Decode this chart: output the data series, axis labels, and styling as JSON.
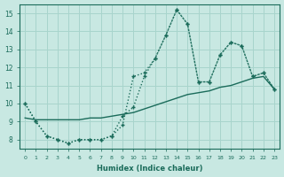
{
  "xlabel": "Humidex (Indice chaleur)",
  "bg_color": "#c8e8e2",
  "grid_color": "#a8d4cc",
  "line_color": "#1a6b5a",
  "xlim": [
    -0.5,
    23.5
  ],
  "ylim": [
    7.5,
    15.5
  ],
  "yticks": [
    8,
    9,
    10,
    11,
    12,
    13,
    14,
    15
  ],
  "xticks": [
    0,
    1,
    2,
    3,
    4,
    5,
    6,
    7,
    8,
    9,
    10,
    11,
    12,
    13,
    14,
    15,
    16,
    17,
    18,
    19,
    20,
    21,
    22,
    23
  ],
  "s1_y": [
    10.0,
    9.0,
    8.2,
    8.0,
    7.8,
    8.0,
    8.0,
    8.0,
    8.2,
    8.8,
    11.5,
    11.7,
    12.5,
    13.8,
    15.2,
    14.4,
    11.2,
    11.2,
    12.7,
    13.4,
    13.2,
    11.5,
    11.7,
    10.8
  ],
  "s2_y": [
    10.0,
    9.0,
    8.2,
    8.0,
    7.8,
    8.0,
    8.0,
    8.0,
    8.2,
    9.3,
    9.8,
    11.5,
    12.5,
    13.8,
    15.2,
    14.4,
    11.2,
    11.2,
    12.7,
    13.4,
    13.2,
    11.5,
    11.7,
    10.8
  ],
  "s3_y": [
    9.2,
    9.1,
    9.1,
    9.1,
    9.1,
    9.1,
    9.2,
    9.2,
    9.3,
    9.4,
    9.5,
    9.7,
    9.9,
    10.1,
    10.3,
    10.5,
    10.6,
    10.7,
    10.9,
    11.0,
    11.2,
    11.4,
    11.5,
    10.8
  ]
}
